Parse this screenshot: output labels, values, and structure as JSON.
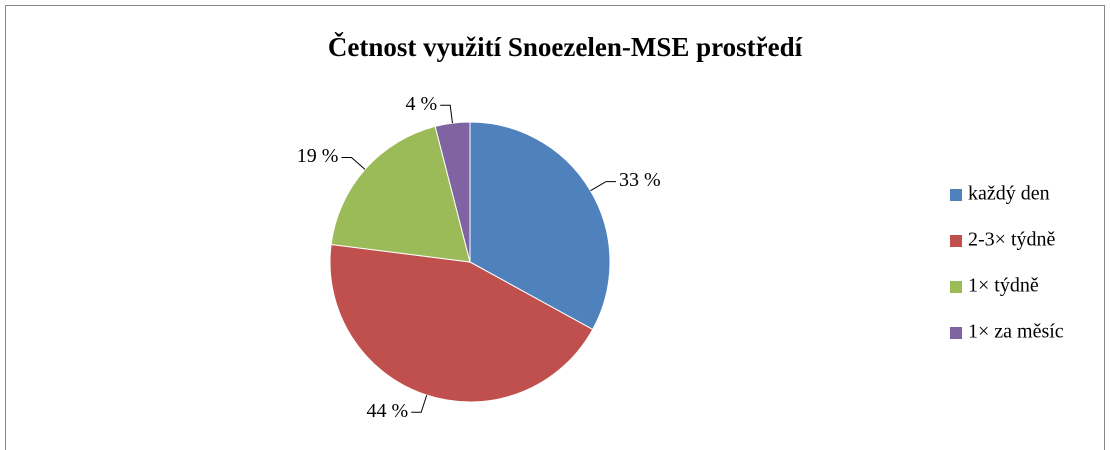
{
  "chart_data": {
    "type": "pie",
    "title": "Četnost využití Snoezelen-MSE prostředí",
    "categories": [
      "každý den",
      "2-3× týdně",
      "1× týdně",
      "1× za měsíc"
    ],
    "values": [
      33,
      44,
      19,
      4
    ],
    "value_labels": [
      "33 %",
      "44 %",
      "19 %",
      "4 %"
    ],
    "colors": [
      "#4f81bd",
      "#c0504d",
      "#9bbb59",
      "#8064a2"
    ],
    "legend": "right"
  }
}
